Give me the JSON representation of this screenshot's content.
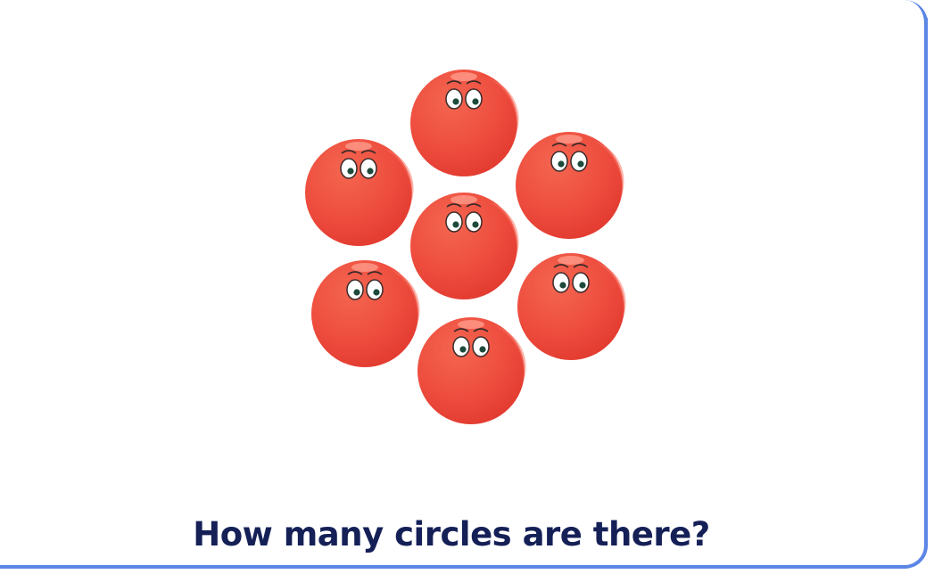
{
  "question": {
    "text": "How many circles are there?"
  },
  "puzzle": {
    "shape": "circle",
    "character": "red-ball-with-eyes",
    "count": 7,
    "colors": {
      "ball": "#ee4d3e",
      "ball_shade": "#e63a30",
      "highlight": "#ff8c7a",
      "text": "#152057",
      "border": "#5b86e5"
    }
  }
}
